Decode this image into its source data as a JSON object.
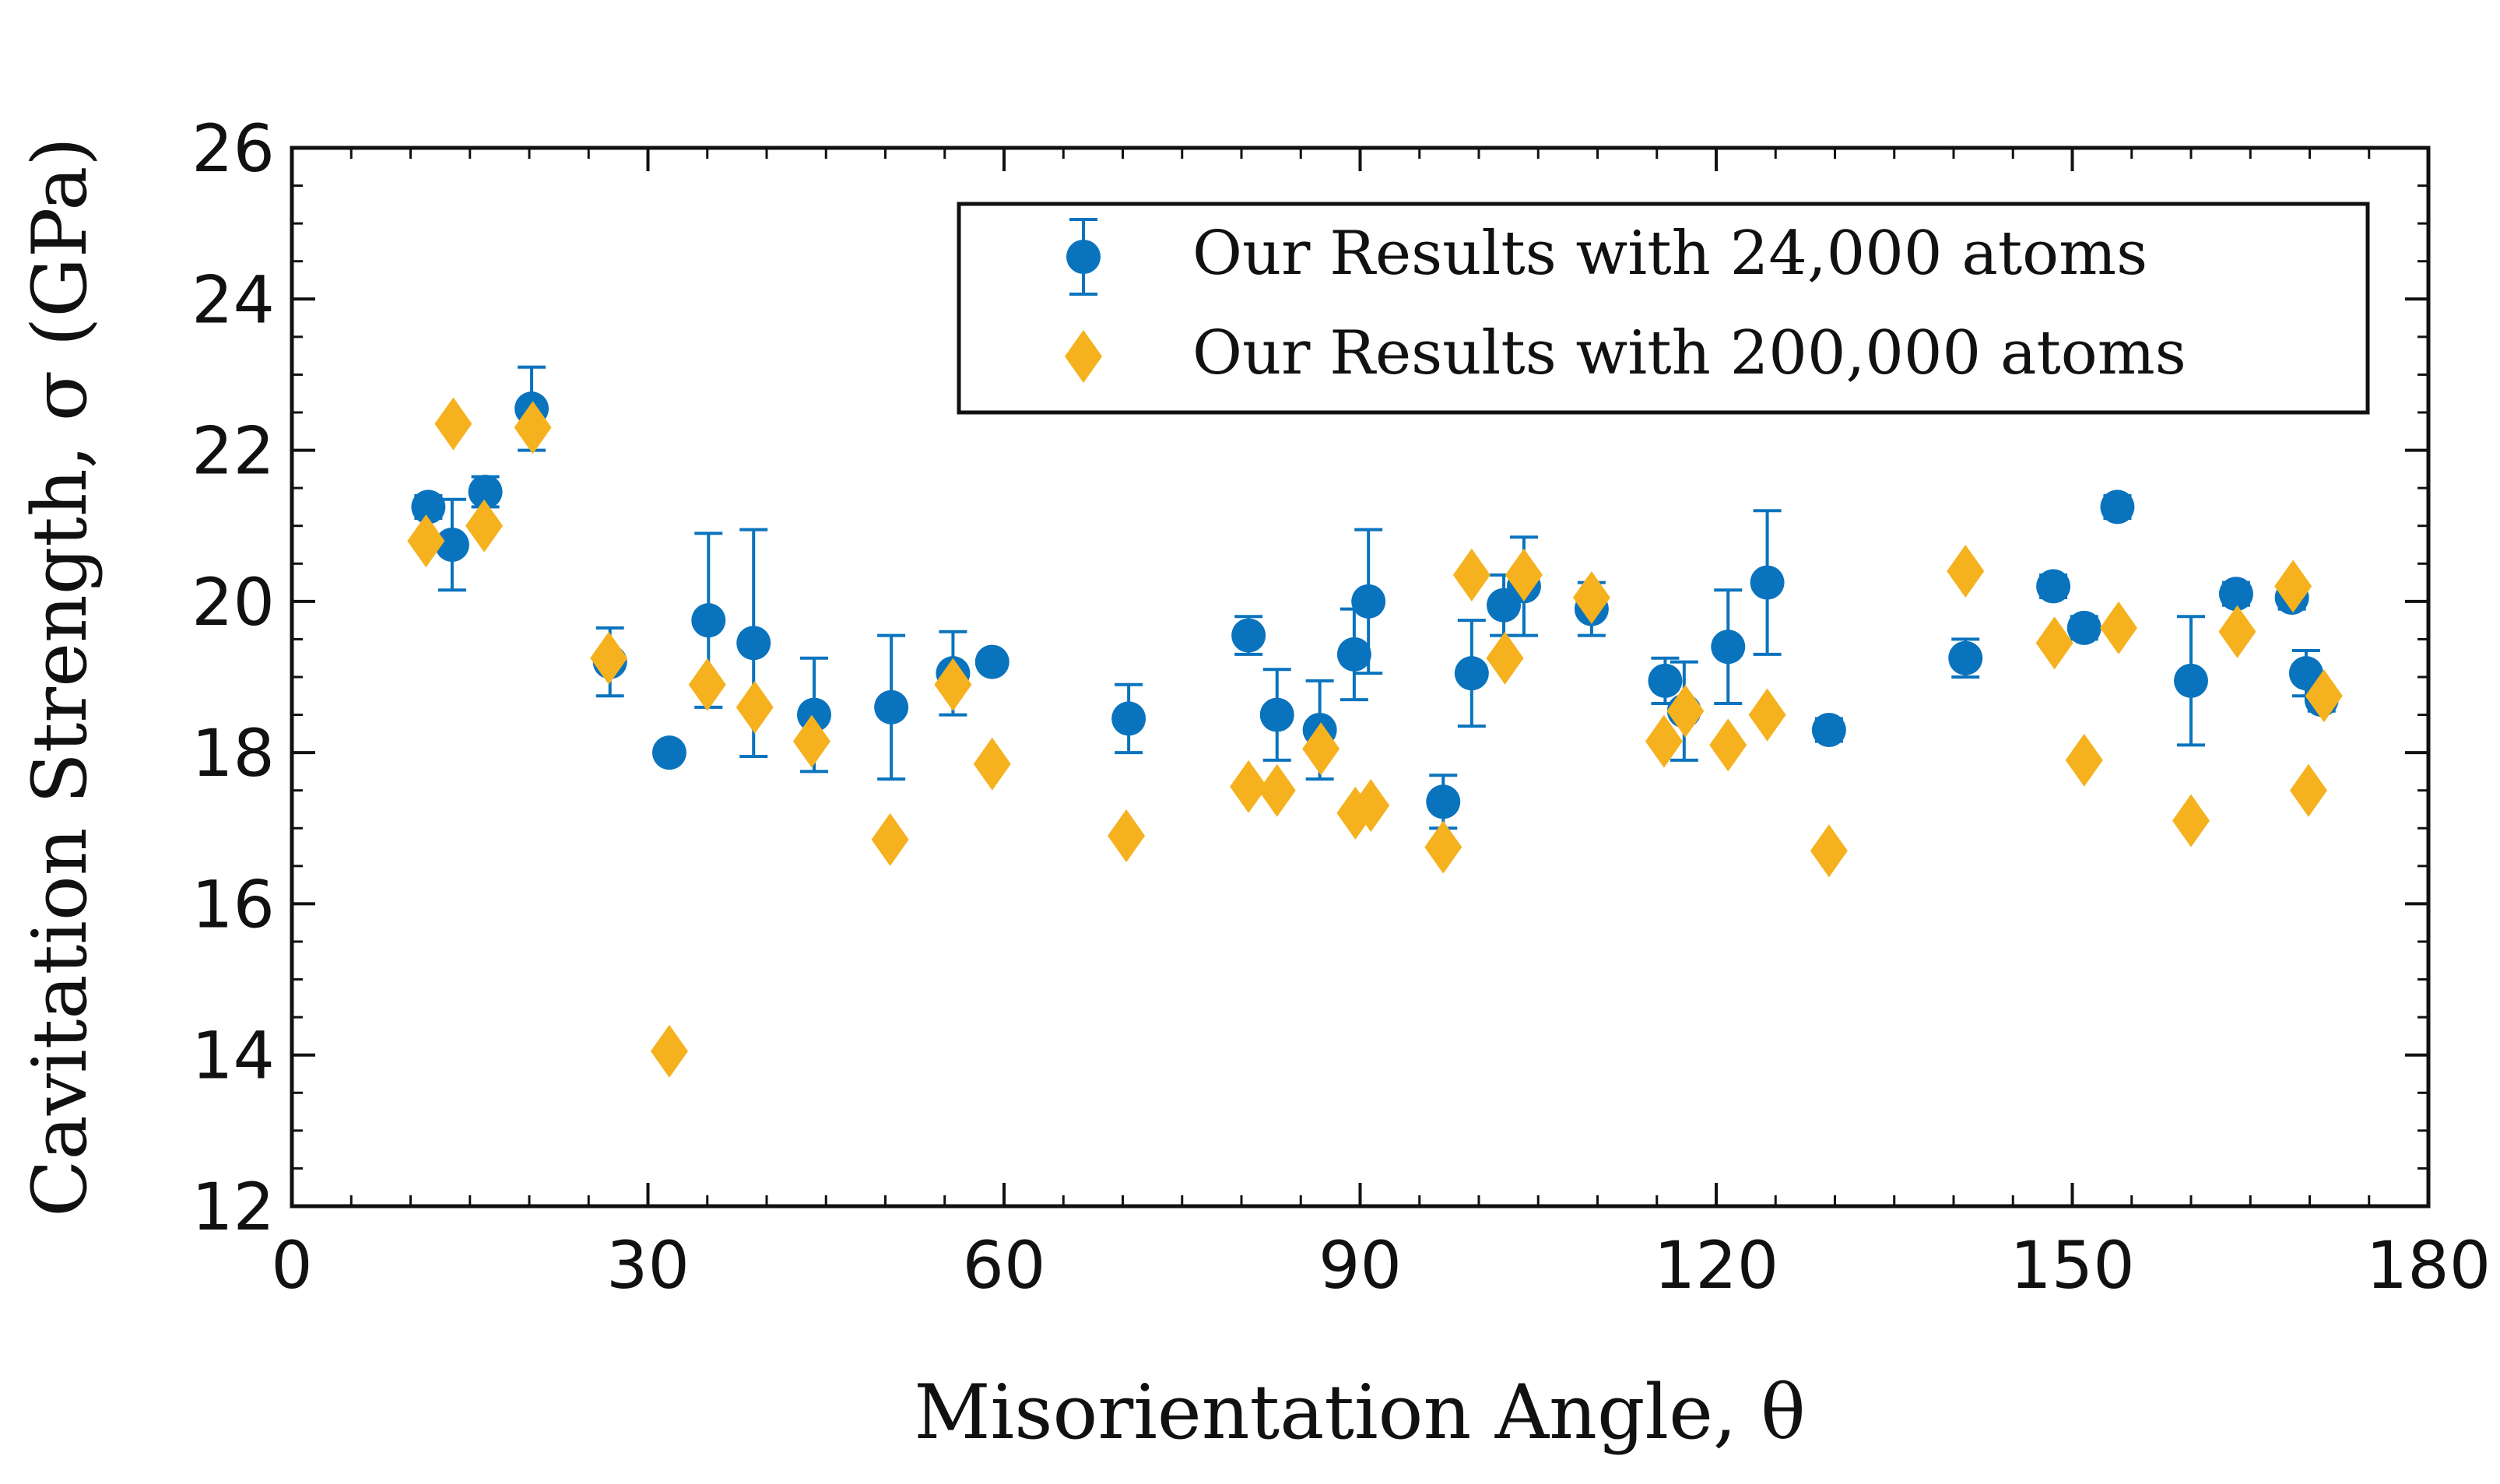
{
  "chart_data": {
    "type": "scatter",
    "xlabel": "Misorientation Angle, θ",
    "ylabel": "Cavitation Strength, σ (GPa)",
    "xlim": [
      0,
      180
    ],
    "ylim": [
      12,
      26
    ],
    "xticks": [
      0,
      30,
      60,
      90,
      120,
      150,
      180
    ],
    "yticks": [
      12,
      14,
      16,
      18,
      20,
      22,
      24,
      26
    ],
    "legend_position": "top-right",
    "grid": false,
    "series": [
      {
        "name": "Our Results with 24,000 atoms",
        "marker": "circle",
        "color": "#0a73be",
        "points": [
          {
            "x": 11.5,
            "y": 21.25,
            "err": 0.15
          },
          {
            "x": 13.5,
            "y": 20.75,
            "err": 0.6
          },
          {
            "x": 16.3,
            "y": 21.45,
            "err": 0.2
          },
          {
            "x": 20.2,
            "y": 22.55,
            "err": 0.55
          },
          {
            "x": 26.8,
            "y": 19.2,
            "err": 0.45
          },
          {
            "x": 31.8,
            "y": 18.0,
            "err": 0.1
          },
          {
            "x": 35.1,
            "y": 19.75,
            "err": 1.15
          },
          {
            "x": 38.9,
            "y": 19.45,
            "err": 1.5
          },
          {
            "x": 44.0,
            "y": 18.5,
            "err": 0.75
          },
          {
            "x": 50.5,
            "y": 18.6,
            "err": 0.95
          },
          {
            "x": 55.7,
            "y": 19.05,
            "err": 0.55
          },
          {
            "x": 59.0,
            "y": 19.2,
            "err": 0.1
          },
          {
            "x": 70.5,
            "y": 18.45,
            "err": 0.45
          },
          {
            "x": 80.6,
            "y": 19.55,
            "err": 0.25
          },
          {
            "x": 83.0,
            "y": 18.5,
            "err": 0.6
          },
          {
            "x": 86.6,
            "y": 18.3,
            "err": 0.65
          },
          {
            "x": 89.5,
            "y": 19.3,
            "err": 0.6
          },
          {
            "x": 90.7,
            "y": 20.0,
            "err": 0.95
          },
          {
            "x": 97.0,
            "y": 17.35,
            "err": 0.35
          },
          {
            "x": 99.4,
            "y": 19.05,
            "err": 0.7
          },
          {
            "x": 102.1,
            "y": 19.95,
            "err": 0.4
          },
          {
            "x": 103.8,
            "y": 20.2,
            "err": 0.65
          },
          {
            "x": 109.5,
            "y": 19.9,
            "err": 0.35
          },
          {
            "x": 115.7,
            "y": 18.95,
            "err": 0.3
          },
          {
            "x": 117.3,
            "y": 18.55,
            "err": 0.65
          },
          {
            "x": 121.0,
            "y": 19.4,
            "err": 0.75
          },
          {
            "x": 124.3,
            "y": 20.25,
            "err": 0.95
          },
          {
            "x": 129.5,
            "y": 18.3,
            "err": 0.15
          },
          {
            "x": 141.0,
            "y": 19.25,
            "err": 0.25
          },
          {
            "x": 148.4,
            "y": 20.2,
            "err": 0.15
          },
          {
            "x": 151.0,
            "y": 19.65,
            "err": 0.15
          },
          {
            "x": 153.8,
            "y": 21.25,
            "err": 0.15
          },
          {
            "x": 160.0,
            "y": 18.95,
            "err": 0.85
          },
          {
            "x": 163.8,
            "y": 20.1,
            "err": 0.15
          },
          {
            "x": 168.5,
            "y": 20.05,
            "err": 0.15
          },
          {
            "x": 169.7,
            "y": 19.05,
            "err": 0.3
          },
          {
            "x": 171.0,
            "y": 18.7,
            "err": 0.15
          }
        ]
      },
      {
        "name": "Our Results with 200,000 atoms",
        "marker": "diamond",
        "color": "#f5b21e",
        "points": [
          {
            "x": 11.3,
            "y": 20.8
          },
          {
            "x": 13.6,
            "y": 22.35
          },
          {
            "x": 16.2,
            "y": 21.0
          },
          {
            "x": 20.3,
            "y": 22.3
          },
          {
            "x": 26.7,
            "y": 19.25
          },
          {
            "x": 31.8,
            "y": 14.05
          },
          {
            "x": 35.0,
            "y": 18.9
          },
          {
            "x": 39.0,
            "y": 18.6
          },
          {
            "x": 43.8,
            "y": 18.15
          },
          {
            "x": 50.4,
            "y": 16.85
          },
          {
            "x": 55.7,
            "y": 18.9
          },
          {
            "x": 59.0,
            "y": 17.85
          },
          {
            "x": 70.3,
            "y": 16.9
          },
          {
            "x": 80.6,
            "y": 17.55
          },
          {
            "x": 83.0,
            "y": 17.5
          },
          {
            "x": 86.7,
            "y": 18.05
          },
          {
            "x": 89.6,
            "y": 17.2
          },
          {
            "x": 90.9,
            "y": 17.3
          },
          {
            "x": 97.0,
            "y": 16.75
          },
          {
            "x": 99.4,
            "y": 20.35
          },
          {
            "x": 102.2,
            "y": 19.25
          },
          {
            "x": 103.8,
            "y": 20.35
          },
          {
            "x": 109.5,
            "y": 20.05
          },
          {
            "x": 115.6,
            "y": 18.15
          },
          {
            "x": 117.4,
            "y": 18.55
          },
          {
            "x": 121.0,
            "y": 18.1
          },
          {
            "x": 124.3,
            "y": 18.5
          },
          {
            "x": 129.5,
            "y": 16.7
          },
          {
            "x": 141.0,
            "y": 20.4
          },
          {
            "x": 148.5,
            "y": 19.45
          },
          {
            "x": 151.0,
            "y": 17.9
          },
          {
            "x": 153.9,
            "y": 19.65
          },
          {
            "x": 160.0,
            "y": 17.1
          },
          {
            "x": 163.9,
            "y": 19.6
          },
          {
            "x": 168.6,
            "y": 20.2
          },
          {
            "x": 169.9,
            "y": 17.5
          },
          {
            "x": 171.2,
            "y": 18.75
          }
        ]
      }
    ]
  }
}
